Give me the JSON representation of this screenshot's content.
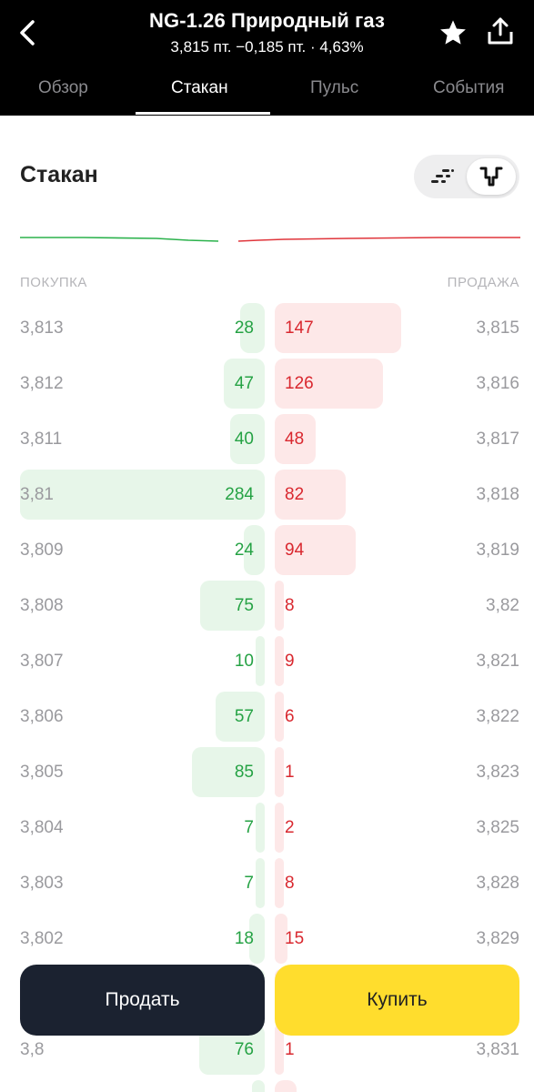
{
  "header": {
    "title": "NG-1.26 Природный газ",
    "subtitle": "3,815 пт.  −0,185 пт. · 4,63%",
    "icons": {
      "back": "chevron-left-icon",
      "favorite": "star-icon",
      "share": "share-icon"
    }
  },
  "tabs": [
    {
      "label": "Обзор"
    },
    {
      "label": "Стакан"
    },
    {
      "label": "Пульс"
    },
    {
      "label": "События"
    }
  ],
  "active_tab": "Стакан",
  "section": {
    "title": "Стакан"
  },
  "view_toggle": {
    "options": [
      "list-view-icon",
      "depth-view-icon"
    ],
    "selected": "depth-view-icon"
  },
  "columns": {
    "bid": "ПОКУПКА",
    "ask": "ПРОДАЖА"
  },
  "order_book": [
    {
      "bid_price": "3,813",
      "bid_qty": "28",
      "ask_qty": "147",
      "ask_price": "3,815"
    },
    {
      "bid_price": "3,812",
      "bid_qty": "47",
      "ask_qty": "126",
      "ask_price": "3,816"
    },
    {
      "bid_price": "3,811",
      "bid_qty": "40",
      "ask_qty": "48",
      "ask_price": "3,817"
    },
    {
      "bid_price": "3,81",
      "bid_qty": "284",
      "ask_qty": "82",
      "ask_price": "3,818"
    },
    {
      "bid_price": "3,809",
      "bid_qty": "24",
      "ask_qty": "94",
      "ask_price": "3,819"
    },
    {
      "bid_price": "3,808",
      "bid_qty": "75",
      "ask_qty": "8",
      "ask_price": "3,82"
    },
    {
      "bid_price": "3,807",
      "bid_qty": "10",
      "ask_qty": "9",
      "ask_price": "3,821"
    },
    {
      "bid_price": "3,806",
      "bid_qty": "57",
      "ask_qty": "6",
      "ask_price": "3,822"
    },
    {
      "bid_price": "3,805",
      "bid_qty": "85",
      "ask_qty": "1",
      "ask_price": "3,823"
    },
    {
      "bid_price": "3,804",
      "bid_qty": "7",
      "ask_qty": "2",
      "ask_price": "3,825"
    },
    {
      "bid_price": "3,803",
      "bid_qty": "7",
      "ask_qty": "8",
      "ask_price": "3,828"
    },
    {
      "bid_price": "3,802",
      "bid_qty": "18",
      "ask_qty": "15",
      "ask_price": "3,829"
    },
    {
      "bid_price": "",
      "bid_qty": "",
      "ask_qty": "",
      "ask_price": ""
    },
    {
      "bid_price": "3,8",
      "bid_qty": "76",
      "ask_qty": "1",
      "ask_price": "3,831"
    }
  ],
  "actions": {
    "sell_label": "Продать",
    "buy_label": "Купить"
  },
  "colors": {
    "bid": "#25a244",
    "ask": "#d9282f",
    "bid_bar": "#e7f6e9",
    "ask_bar": "#fde8e8",
    "buy_button": "#ffdd2d",
    "sell_button": "#1b2230"
  }
}
